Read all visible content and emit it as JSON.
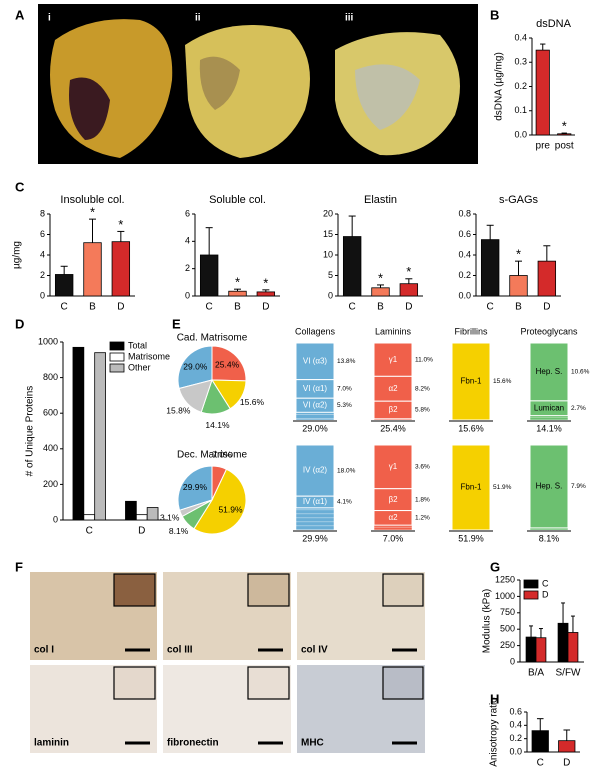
{
  "panel_labels": [
    "A",
    "B",
    "C",
    "D",
    "E",
    "F",
    "G",
    "H"
  ],
  "heart_images": [
    "i",
    "ii",
    "iii"
  ],
  "stains": [
    "col I",
    "col III",
    "col IV",
    "laminin",
    "fibronectin",
    "MHC"
  ],
  "chart_data": [
    {
      "type": "bar",
      "title": "dsDNA",
      "y_label": "dsDNA (µg/mg)",
      "categories": [
        "pre",
        "post"
      ],
      "values": [
        0.35,
        0.005
      ],
      "errors": [
        0.025,
        0.003
      ],
      "colors": [
        "#d42a2a",
        "#d42a2a"
      ],
      "ylim": [
        0,
        0.4
      ],
      "yticks": [
        {
          "value": 0,
          "label": "0.0"
        },
        0.1,
        0.2,
        0.3,
        0.4
      ],
      "star": "*",
      "significant": [
        false,
        true
      ]
    },
    {
      "type": "bar",
      "title": "Insoluble col.",
      "y_label": "µg/mg",
      "categories": [
        "C",
        "B",
        "D"
      ],
      "values": [
        2.1,
        5.2,
        5.3
      ],
      "errors": [
        0.8,
        2.3,
        1.0
      ],
      "colors": [
        "#111111",
        "#f47a5a",
        "#d42a2a"
      ],
      "ylim": [
        0,
        8
      ],
      "yticks": [
        0,
        2,
        4,
        6,
        8
      ],
      "star": "*",
      "significant": [
        false,
        true,
        true
      ]
    },
    {
      "type": "bar",
      "title": "Soluble col.",
      "categories": [
        "C",
        "B",
        "D"
      ],
      "values": [
        3.0,
        0.35,
        0.3
      ],
      "errors": [
        2.0,
        0.15,
        0.15
      ],
      "colors": [
        "#111111",
        "#f47a5a",
        "#d42a2a"
      ],
      "ylim": [
        0,
        6
      ],
      "yticks": [
        0,
        2,
        4,
        6
      ],
      "star": "*",
      "significant": [
        false,
        true,
        true
      ]
    },
    {
      "type": "bar",
      "title": "Elastin",
      "categories": [
        "C",
        "B",
        "D"
      ],
      "values": [
        14.5,
        2.0,
        3.0
      ],
      "errors": [
        5.0,
        0.7,
        1.2
      ],
      "colors": [
        "#111111",
        "#f47a5a",
        "#d42a2a"
      ],
      "ylim": [
        0,
        20
      ],
      "yticks": [
        0,
        5,
        10,
        15,
        20
      ],
      "star": "*",
      "significant": [
        false,
        true,
        true
      ]
    },
    {
      "type": "bar",
      "title": "s-GAGs",
      "categories": [
        "C",
        "B",
        "D"
      ],
      "values": [
        0.55,
        0.2,
        0.34
      ],
      "errors": [
        0.14,
        0.14,
        0.15
      ],
      "colors": [
        "#111111",
        "#f47a5a",
        "#d42a2a"
      ],
      "ylim": [
        0,
        0.8
      ],
      "yticks": [
        {
          "value": 0,
          "label": "0.0"
        },
        0.2,
        0.4,
        0.6,
        0.8
      ],
      "star": "*",
      "significant": [
        false,
        true,
        false
      ]
    },
    {
      "type": "bar",
      "y_label": "# of Unique Proteins",
      "categories": [
        "C",
        "D"
      ],
      "legend": "upper right",
      "series": [
        {
          "name": "Total",
          "color": "#000000",
          "values": [
            970,
            105
          ]
        },
        {
          "name": "Matrisome",
          "color": "#ffffff",
          "values": [
            30,
            30
          ]
        },
        {
          "name": "Other",
          "color": "#bbbbbb",
          "values": [
            940,
            70
          ]
        }
      ],
      "ylim": [
        0,
        1000
      ],
      "yticks": [
        0,
        200,
        400,
        600,
        800,
        1000
      ]
    },
    {
      "type": "pie",
      "categories": [
        "Collagens",
        "Laminins",
        "Fibrillins",
        "Proteoglycans",
        null
      ],
      "colors": [
        "#6aaed6",
        "#f0604a",
        "#f5d000",
        "#6cc070",
        "#c8c8c8"
      ],
      "pies": [
        {
          "title": "Cad. Matrisome",
          "values": [
            29.0,
            25.4,
            15.6,
            14.1,
            15.8
          ],
          "value_labels": [
            "29.0%",
            "25.4%",
            "15.6%",
            "14.1%",
            "15.8%"
          ],
          "stacks": [
            [
              {
                "name": "VI (α3)",
                "value": 13.8,
                "value_label": "13.8%"
              },
              {
                "name": "VI (α1)",
                "value": 7.0,
                "value_label": "7.0%"
              },
              {
                "name": "VI (α2)",
                "value": 5.3,
                "value_label": "5.3%"
              }
            ],
            [
              {
                "name": "γ1",
                "value": 11.0,
                "value_label": "11.0%"
              },
              {
                "name": "α2",
                "value": 8.2,
                "value_label": "8.2%"
              },
              {
                "name": "β2",
                "value": 5.8,
                "value_label": "5.8%"
              }
            ],
            [
              {
                "name": "Fbn-1",
                "value": 15.6,
                "value_label": "15.6%"
              }
            ],
            [
              {
                "name": "Hep. S.",
                "value": 10.6,
                "value_label": "10.6%"
              },
              {
                "name": "Lumican",
                "value": 2.7,
                "value_label": "2.7%"
              }
            ]
          ]
        },
        {
          "title": "Dec. Matrisome",
          "values": [
            29.9,
            7.0,
            51.9,
            8.1,
            3.1
          ],
          "value_labels": [
            "29.9%",
            "7.0%",
            "51.9%",
            "8.1%",
            "3.1%"
          ],
          "stacks": [
            [
              {
                "name": "IV (α2)",
                "value": 18.0,
                "value_label": "18.0%"
              },
              {
                "name": "IV (α1)",
                "value": 4.1,
                "value_label": "4.1%"
              }
            ],
            [
              {
                "name": "γ1",
                "value": 3.6,
                "value_label": "3.6%"
              },
              {
                "name": "β2",
                "value": 1.8,
                "value_label": "1.8%"
              },
              {
                "name": "α2",
                "value": 1.2,
                "value_label": "1.2%"
              }
            ],
            [
              {
                "name": "Fbn-1",
                "value": 51.9,
                "value_label": "51.9%"
              }
            ],
            [
              {
                "name": "Hep. S.",
                "value": 7.9,
                "value_label": "7.9%"
              }
            ]
          ]
        }
      ]
    },
    {
      "type": "bar",
      "y_label": "Modulus (kPa)",
      "categories": [
        "B/A",
        "S/FW"
      ],
      "legend": "upper left",
      "series": [
        {
          "name": "C",
          "color": "#000000",
          "values": [
            380,
            590
          ],
          "errors": [
            170,
            310
          ]
        },
        {
          "name": "D",
          "color": "#d42a2a",
          "values": [
            370,
            450
          ],
          "errors": [
            140,
            250
          ]
        }
      ],
      "ylim": [
        0,
        1250
      ],
      "yticks": [
        0,
        250,
        500,
        750,
        1000,
        1250
      ]
    },
    {
      "type": "bar",
      "y_label": "Anisotropy ratio",
      "categories": [
        "C",
        "D"
      ],
      "values": [
        0.32,
        0.17
      ],
      "errors": [
        0.18,
        0.16
      ],
      "colors": [
        "#000000",
        "#d42a2a"
      ],
      "ylim": [
        0,
        0.6
      ],
      "yticks": [
        {
          "value": 0,
          "label": "0.0"
        },
        0.2,
        0.4,
        0.6
      ]
    }
  ]
}
